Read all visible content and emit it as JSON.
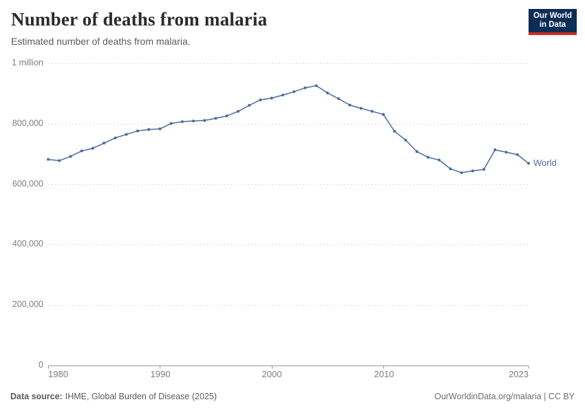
{
  "header": {
    "title": "Number of deaths from malaria",
    "subtitle": "Estimated number of deaths from malaria.",
    "logo": {
      "line1": "Our World",
      "line2": "in Data",
      "bg": "#0D2D55",
      "accent": "#CF2E21"
    }
  },
  "chart_data": {
    "type": "line",
    "title": "Number of deaths from malaria",
    "xlabel": "",
    "ylabel": "",
    "xlim": [
      1980,
      2023
    ],
    "ylim": [
      0,
      1000000
    ],
    "grid": "horizontal-dashed",
    "legend": "end-of-line-label",
    "colors": {
      "line": "#4C6A9C",
      "grid": "#dcdcdc",
      "axis": "#999999"
    },
    "years": [
      1980,
      1981,
      1982,
      1983,
      1984,
      1985,
      1986,
      1987,
      1988,
      1989,
      1990,
      1991,
      1992,
      1993,
      1994,
      1995,
      1996,
      1997,
      1998,
      1999,
      2000,
      2001,
      2002,
      2003,
      2004,
      2005,
      2006,
      2007,
      2008,
      2009,
      2010,
      2011,
      2012,
      2013,
      2014,
      2015,
      2016,
      2017,
      2018,
      2019,
      2020,
      2021,
      2022,
      2023
    ],
    "series": [
      {
        "name": "World",
        "color": "#4C6A9C",
        "values": [
          682000,
          678000,
          692000,
          710000,
          719000,
          736000,
          753000,
          765000,
          776000,
          781000,
          783000,
          801000,
          807000,
          809000,
          811000,
          818000,
          826000,
          841000,
          861000,
          879000,
          885000,
          895000,
          906000,
          919000,
          926000,
          902000,
          883000,
          862000,
          851000,
          841000,
          831000,
          775000,
          746000,
          708000,
          689000,
          680000,
          651000,
          638000,
          644000,
          649000,
          714000,
          706000,
          698000,
          669000
        ]
      }
    ],
    "yticks": [
      {
        "value": 0,
        "label": "0"
      },
      {
        "value": 200000,
        "label": "200,000"
      },
      {
        "value": 400000,
        "label": "400,000"
      },
      {
        "value": 600000,
        "label": "600,000"
      },
      {
        "value": 800000,
        "label": "800,000"
      },
      {
        "value": 1000000,
        "label": "1 million"
      }
    ],
    "xticks": [
      {
        "value": 1980,
        "label": "1980"
      },
      {
        "value": 1990,
        "label": "1990"
      },
      {
        "value": 2000,
        "label": "2000"
      },
      {
        "value": 2010,
        "label": "2010"
      },
      {
        "value": 2023,
        "label": "2023"
      }
    ]
  },
  "footer": {
    "source_label": "Data source:",
    "source_value": "IHME, Global Burden of Disease (2025)",
    "citation": "OurWorldinData.org/malaria | CC BY"
  }
}
